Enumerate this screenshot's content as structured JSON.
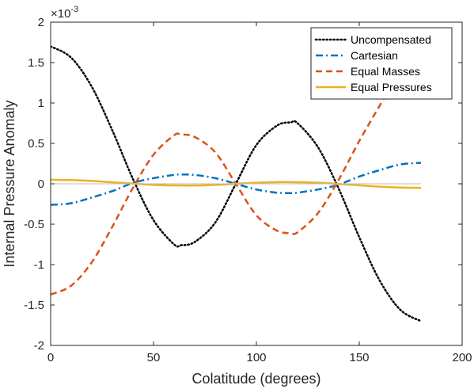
{
  "chart_data": {
    "type": "line",
    "title": "",
    "xlabel": "Colatitude (degrees)",
    "ylabel": "Internal Pressure Anomaly",
    "y_exponent_base": "×10",
    "y_exponent_power": "-3",
    "xlim": [
      0,
      200
    ],
    "ylim": [
      -2,
      2
    ],
    "x_ticks": [
      0,
      50,
      100,
      150,
      200
    ],
    "x_tick_labels": [
      "0",
      "50",
      "100",
      "150",
      "200"
    ],
    "y_ticks": [
      -2,
      -1.5,
      -1,
      -0.5,
      0,
      0.5,
      1,
      1.5,
      2
    ],
    "y_tick_labels": [
      "-2",
      "-1.5",
      "-1",
      "-0.5",
      "0",
      "0.5",
      "1",
      "1.5",
      "2"
    ],
    "grid": false,
    "legend_location": "top-right",
    "series": [
      {
        "name": "Uncompensated",
        "color": "#000000",
        "style": "dotted",
        "x": [
          0,
          10,
          20,
          30,
          40,
          50,
          60,
          63.4,
          70,
          80,
          90,
          100,
          110,
          116.6,
          120,
          130,
          140,
          150,
          160,
          170,
          180
        ],
        "y": [
          1.7,
          1.56,
          1.2,
          0.66,
          0.06,
          -0.45,
          -0.75,
          -0.76,
          -0.72,
          -0.48,
          0.0,
          0.48,
          0.72,
          0.76,
          0.75,
          0.45,
          -0.06,
          -0.66,
          -1.2,
          -1.56,
          -1.7
        ]
      },
      {
        "name": "Cartesian",
        "color": "#0072BD",
        "style": "dashdot",
        "x": [
          0,
          10,
          20,
          30,
          40,
          50,
          60,
          63.4,
          70,
          80,
          90,
          100,
          110,
          116.6,
          120,
          130,
          140,
          150,
          160,
          170,
          180
        ],
        "y": [
          -0.26,
          -0.24,
          -0.17,
          -0.09,
          0.01,
          0.07,
          0.11,
          0.115,
          0.11,
          0.07,
          0.0,
          -0.07,
          -0.11,
          -0.115,
          -0.11,
          -0.07,
          -0.01,
          0.09,
          0.17,
          0.24,
          0.26
        ]
      },
      {
        "name": "Equal Masses",
        "color": "#D95319",
        "style": "dashed",
        "x": [
          0,
          10,
          20,
          30,
          40,
          50,
          60,
          63.4,
          70,
          80,
          90,
          100,
          110,
          116.6,
          120,
          130,
          140,
          150,
          160,
          163
        ],
        "y": [
          -1.37,
          -1.26,
          -0.97,
          -0.53,
          -0.05,
          0.36,
          0.6,
          0.61,
          0.58,
          0.39,
          0.0,
          -0.39,
          -0.58,
          -0.61,
          -0.6,
          -0.36,
          0.05,
          0.53,
          0.97,
          1.1
        ]
      },
      {
        "name": "Equal Pressures",
        "color": "#EDB120",
        "style": "solid",
        "x": [
          0,
          10,
          20,
          30,
          40,
          50,
          60,
          70,
          80,
          90,
          100,
          110,
          120,
          130,
          140,
          150,
          160,
          170,
          180
        ],
        "y": [
          0.05,
          0.046,
          0.035,
          0.019,
          0.002,
          -0.013,
          -0.02,
          -0.021,
          -0.014,
          0.0,
          0.014,
          0.021,
          0.02,
          0.013,
          -0.002,
          -0.019,
          -0.035,
          -0.046,
          -0.05
        ]
      }
    ]
  }
}
